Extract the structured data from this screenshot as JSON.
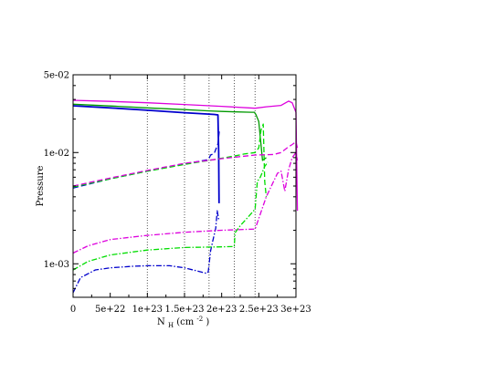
{
  "chart_data": {
    "type": "line",
    "title": "",
    "xlabel": "N",
    "xlabel_sub": "H",
    "xlabel_unit": "(cm",
    "xlabel_exp": "-2",
    "xlabel_close": ")",
    "ylabel": "Pressure",
    "x_scale": "linear",
    "y_scale": "log",
    "xlim": [
      0,
      3e+23
    ],
    "ylim": [
      0.0005,
      0.05
    ],
    "x_ticks": [
      0,
      5e+22,
      1e+23,
      1.5e+23,
      2e+23,
      2.5e+23,
      3e+23
    ],
    "x_tick_labels": [
      "0",
      "5e+22",
      "1e+23",
      "1.5e+23",
      "2e+23",
      "2.5e+23",
      "3e+23"
    ],
    "y_ticks": [
      0.001,
      0.01,
      0.05
    ],
    "y_tick_labels": [
      "1e-03",
      "1e-02",
      "5e-02"
    ],
    "vlines": [
      1e+23,
      1.5e+23,
      1.83e+23,
      2.17e+23,
      2.45e+23
    ],
    "grid": false,
    "legend": "none",
    "series": [
      {
        "color": "#0000cc",
        "dash": "solid",
        "width": 1.8,
        "points": [
          [
            0,
            0.0263
          ],
          [
            5e+22,
            0.0252
          ],
          [
            1e+23,
            0.024
          ],
          [
            1.5e+23,
            0.0228
          ],
          [
            1.8e+23,
            0.0222
          ],
          [
            1.9e+23,
            0.022
          ],
          [
            1.95e+23,
            0.0218
          ],
          [
            1.96e+23,
            0.01
          ],
          [
            1.965e+23,
            0.0035
          ]
        ]
      },
      {
        "color": "#0000cc",
        "dash": "dashed",
        "width": 1.3,
        "points": [
          [
            0,
            0.0048
          ],
          [
            5e+22,
            0.0058
          ],
          [
            1e+23,
            0.0068
          ],
          [
            1.5e+23,
            0.0079
          ],
          [
            1.8e+23,
            0.0086
          ],
          [
            1.83e+23,
            0.0088
          ],
          [
            1.85e+23,
            0.0095
          ],
          [
            1.9e+23,
            0.0098
          ],
          [
            1.95e+23,
            0.012
          ],
          [
            1.97e+23,
            0.016
          ]
        ]
      },
      {
        "color": "#0000cc",
        "dash": "dashdot",
        "width": 1.3,
        "points": [
          [
            0,
            0.00055
          ],
          [
            1e+22,
            0.00075
          ],
          [
            3e+22,
            0.00088
          ],
          [
            5e+22,
            0.00092
          ],
          [
            8e+22,
            0.00095
          ],
          [
            1e+23,
            0.00096
          ],
          [
            1.3e+23,
            0.00096
          ],
          [
            1.5e+23,
            0.00092
          ],
          [
            1.8e+23,
            0.00082
          ],
          [
            1.82e+23,
            0.00085
          ],
          [
            1.85e+23,
            0.0013
          ],
          [
            1.88e+23,
            0.0016
          ],
          [
            1.92e+23,
            0.0021
          ],
          [
            1.94e+23,
            0.003
          ],
          [
            1.96e+23,
            0.0025
          ]
        ]
      },
      {
        "color": "#009900",
        "dash": "solid",
        "width": 1.3,
        "points": [
          [
            0,
            0.0272
          ],
          [
            5e+22,
            0.0262
          ],
          [
            1e+23,
            0.0252
          ],
          [
            1.5e+23,
            0.0243
          ],
          [
            1.83e+23,
            0.0237
          ],
          [
            2e+23,
            0.0234
          ],
          [
            2.2e+23,
            0.0232
          ],
          [
            2.4e+23,
            0.023
          ],
          [
            2.44e+23,
            0.023
          ],
          [
            2.46e+23,
            0.022
          ],
          [
            2.5e+23,
            0.019
          ],
          [
            2.55e+23,
            0.0085
          ],
          [
            2.6e+23,
            0.009
          ]
        ]
      },
      {
        "color": "#00dd00",
        "dash": "dashed",
        "width": 1.3,
        "points": [
          [
            0,
            0.0049
          ],
          [
            5e+22,
            0.0058
          ],
          [
            1e+23,
            0.0068
          ],
          [
            1.5e+23,
            0.0078
          ],
          [
            1.83e+23,
            0.0085
          ],
          [
            2.17e+23,
            0.0093
          ],
          [
            2.3e+23,
            0.0097
          ],
          [
            2.45e+23,
            0.01
          ],
          [
            2.5e+23,
            0.011
          ],
          [
            2.53e+23,
            0.016
          ],
          [
            2.56e+23,
            0.018
          ],
          [
            2.58e+23,
            0.0055
          ],
          [
            2.6e+23,
            0.004
          ]
        ]
      },
      {
        "color": "#00dd00",
        "dash": "dashdot",
        "width": 1.3,
        "points": [
          [
            0,
            0.00088
          ],
          [
            2e+22,
            0.00105
          ],
          [
            5e+22,
            0.0012
          ],
          [
            1e+23,
            0.00133
          ],
          [
            1.5e+23,
            0.0014
          ],
          [
            2e+23,
            0.00142
          ],
          [
            2.17e+23,
            0.00143
          ],
          [
            2.18e+23,
            0.0019
          ],
          [
            2.25e+23,
            0.0022
          ],
          [
            2.35e+23,
            0.0026
          ],
          [
            2.45e+23,
            0.0031
          ],
          [
            2.48e+23,
            0.0055
          ],
          [
            2.52e+23,
            0.006
          ],
          [
            2.58e+23,
            0.0075
          ],
          [
            2.62e+23,
            0.0082
          ]
        ]
      },
      {
        "color": "#dd00dd",
        "dash": "solid",
        "width": 1.3,
        "points": [
          [
            0,
            0.0295
          ],
          [
            5e+22,
            0.0288
          ],
          [
            1e+23,
            0.028
          ],
          [
            1.5e+23,
            0.027
          ],
          [
            2e+23,
            0.026
          ],
          [
            2.45e+23,
            0.025
          ],
          [
            2.6e+23,
            0.0258
          ],
          [
            2.8e+23,
            0.0265
          ],
          [
            2.9e+23,
            0.029
          ],
          [
            2.95e+23,
            0.028
          ],
          [
            3e+23,
            0.023
          ],
          [
            3.02e+23,
            0.003
          ]
        ]
      },
      {
        "color": "#dd00dd",
        "dash": "dashed",
        "width": 1.3,
        "points": [
          [
            0,
            0.005
          ],
          [
            5e+22,
            0.0059
          ],
          [
            1e+23,
            0.0069
          ],
          [
            1.5e+23,
            0.008
          ],
          [
            2e+23,
            0.0088
          ],
          [
            2.45e+23,
            0.0095
          ],
          [
            2.7e+23,
            0.0096
          ],
          [
            2.8e+23,
            0.01
          ],
          [
            2.88e+23,
            0.011
          ],
          [
            2.95e+23,
            0.0118
          ],
          [
            3e+23,
            0.0125
          ],
          [
            3.02e+23,
            0.011
          ]
        ]
      },
      {
        "color": "#dd00dd",
        "dash": "dashdot",
        "width": 1.3,
        "points": [
          [
            0,
            0.00125
          ],
          [
            2e+22,
            0.00145
          ],
          [
            5e+22,
            0.00165
          ],
          [
            1e+23,
            0.0018
          ],
          [
            1.5e+23,
            0.00192
          ],
          [
            2e+23,
            0.002
          ],
          [
            2.45e+23,
            0.00205
          ],
          [
            2.6e+23,
            0.004
          ],
          [
            2.75e+23,
            0.0065
          ],
          [
            2.8e+23,
            0.0068
          ],
          [
            2.85e+23,
            0.0045
          ],
          [
            2.9e+23,
            0.007
          ],
          [
            2.95e+23,
            0.009
          ],
          [
            3e+23,
            0.01
          ],
          [
            3.02e+23,
            0.0085
          ]
        ]
      }
    ]
  }
}
